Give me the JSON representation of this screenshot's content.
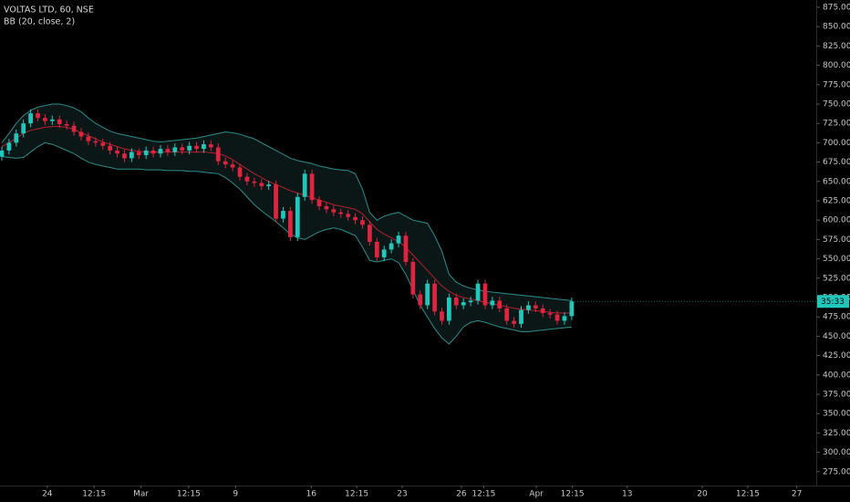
{
  "chart_data": {
    "type": "candlestick",
    "title": "VOLTAS LTD, 60, NSE",
    "indicator_label": "BB (20, close, 2)",
    "last_price_label": "35:33",
    "up_color": "#22c7bb",
    "down_color": "#e0233f",
    "band_color": "#2b8d8a",
    "basis_color": "#b3232f",
    "band_fill": "#0b1716",
    "xlim": [
      -0.25,
      112.9
    ],
    "xticks": [
      {
        "value": 6.3,
        "label": "24"
      },
      {
        "value": 12.8,
        "label": "12:15"
      },
      {
        "value": 19.3,
        "label": "Mar"
      },
      {
        "value": 25.9,
        "label": "12:15"
      },
      {
        "value": 32.4,
        "label": "9"
      },
      {
        "value": 42.9,
        "label": "16"
      },
      {
        "value": 49.2,
        "label": "12:15"
      },
      {
        "value": 55.5,
        "label": "23"
      },
      {
        "value": 63.7,
        "label": "26"
      },
      {
        "value": 66.8,
        "label": "12:15"
      },
      {
        "value": 74.1,
        "label": "Apr"
      },
      {
        "value": 79.1,
        "label": "12:15"
      },
      {
        "value": 86.7,
        "label": "13"
      },
      {
        "value": 97.1,
        "label": "20"
      },
      {
        "value": 103.4,
        "label": "12:15"
      },
      {
        "value": 110.2,
        "label": "27"
      }
    ],
    "ylim": [
      257.1,
      884.4
    ],
    "yticks": [
      {
        "value": 275,
        "label": "275.00"
      },
      {
        "value": 300,
        "label": "300.00"
      },
      {
        "value": 325,
        "label": "325.00"
      },
      {
        "value": 350,
        "label": "350.00"
      },
      {
        "value": 375,
        "label": "375.00"
      },
      {
        "value": 400,
        "label": "400.00"
      },
      {
        "value": 425,
        "label": "425.00"
      },
      {
        "value": 450,
        "label": "450.00"
      },
      {
        "value": 475,
        "label": "475.00"
      },
      {
        "value": 500,
        "label": "500.00"
      },
      {
        "value": 525,
        "label": "525.00"
      },
      {
        "value": 550,
        "label": "550.00"
      },
      {
        "value": 575,
        "label": "575.00"
      },
      {
        "value": 600,
        "label": "600.00"
      },
      {
        "value": 625,
        "label": "625.00"
      },
      {
        "value": 650,
        "label": "650.00"
      },
      {
        "value": 675,
        "label": "675.00"
      },
      {
        "value": 700,
        "label": "700.00"
      },
      {
        "value": 725,
        "label": "725.00"
      },
      {
        "value": 750,
        "label": "750.00"
      },
      {
        "value": 775,
        "label": "775.00"
      },
      {
        "value": 800,
        "label": "800.00"
      },
      {
        "value": 825,
        "label": "825.00"
      },
      {
        "value": 850,
        "label": "850.00"
      },
      {
        "value": 875,
        "label": "875.00"
      }
    ],
    "open": [
      682,
      690,
      700,
      712,
      725,
      738,
      732,
      728,
      730,
      724,
      722,
      714,
      708,
      702,
      700,
      696,
      690,
      686,
      680,
      688,
      684,
      690,
      686,
      692,
      688,
      694,
      690,
      696,
      692,
      698,
      694,
      676,
      672,
      668,
      656,
      650,
      648,
      644,
      646,
      602,
      612,
      578,
      630,
      660,
      626,
      618,
      614,
      610,
      608,
      604,
      600,
      594,
      572,
      552,
      562,
      570,
      580,
      546,
      504,
      490,
      518,
      482,
      470,
      500,
      490,
      494,
      496,
      518,
      490,
      496,
      486,
      470,
      466,
      484,
      490,
      486,
      480,
      478,
      470,
      476
    ],
    "high": [
      695,
      705,
      717,
      730,
      743,
      743,
      737,
      735,
      735,
      729,
      727,
      719,
      713,
      707,
      705,
      701,
      695,
      691,
      693,
      693,
      695,
      695,
      697,
      697,
      699,
      699,
      701,
      701,
      703,
      703,
      699,
      681,
      677,
      673,
      661,
      655,
      653,
      651,
      651,
      617,
      617,
      635,
      665,
      665,
      631,
      623,
      619,
      615,
      613,
      609,
      605,
      599,
      577,
      567,
      575,
      585,
      585,
      551,
      509,
      523,
      523,
      487,
      505,
      505,
      499,
      501,
      523,
      523,
      501,
      501,
      491,
      475,
      489,
      495,
      495,
      491,
      485,
      483,
      481,
      500
    ],
    "low": [
      677,
      685,
      695,
      707,
      720,
      727,
      723,
      723,
      719,
      717,
      709,
      703,
      697,
      695,
      691,
      685,
      681,
      675,
      675,
      679,
      679,
      681,
      681,
      683,
      683,
      685,
      685,
      687,
      687,
      689,
      671,
      667,
      663,
      651,
      645,
      643,
      639,
      639,
      597,
      597,
      573,
      573,
      625,
      621,
      613,
      609,
      605,
      603,
      599,
      595,
      589,
      567,
      547,
      547,
      557,
      565,
      541,
      499,
      485,
      485,
      477,
      465,
      465,
      485,
      485,
      489,
      491,
      485,
      485,
      481,
      465,
      461,
      461,
      479,
      481,
      475,
      473,
      465,
      465,
      471
    ],
    "close": [
      690,
      700,
      712,
      725,
      738,
      732,
      728,
      730,
      724,
      722,
      714,
      708,
      702,
      700,
      696,
      690,
      686,
      680,
      688,
      684,
      690,
      686,
      692,
      688,
      694,
      690,
      696,
      692,
      698,
      694,
      676,
      672,
      668,
      656,
      650,
      648,
      644,
      646,
      602,
      612,
      578,
      630,
      660,
      626,
      618,
      614,
      610,
      608,
      604,
      600,
      594,
      572,
      552,
      562,
      570,
      580,
      546,
      504,
      490,
      518,
      482,
      470,
      500,
      490,
      494,
      496,
      518,
      490,
      496,
      486,
      470,
      466,
      484,
      490,
      486,
      480,
      478,
      470,
      476,
      495
    ],
    "upper": [
      700,
      712,
      725,
      735,
      742,
      746,
      748,
      750,
      750,
      748,
      745,
      740,
      732,
      725,
      720,
      715,
      712,
      710,
      708,
      706,
      704,
      702,
      701,
      702,
      703,
      704,
      705,
      706,
      708,
      710,
      712,
      714,
      713,
      711,
      708,
      705,
      700,
      695,
      690,
      685,
      680,
      677,
      675,
      673,
      670,
      668,
      666,
      665,
      664,
      660,
      640,
      610,
      600,
      605,
      608,
      610,
      605,
      600,
      598,
      596,
      580,
      560,
      530,
      520,
      515,
      512,
      510,
      508,
      507,
      506,
      505,
      504,
      503,
      502,
      501,
      500,
      499,
      498,
      497,
      496
    ],
    "basis": [
      695,
      700,
      706,
      712,
      716,
      718,
      720,
      721,
      721,
      720,
      717,
      713,
      709,
      705,
      701,
      698,
      695,
      692,
      690,
      689,
      688,
      688,
      688,
      688,
      688,
      688,
      688,
      688,
      688,
      687,
      686,
      683,
      678,
      672,
      666,
      660,
      655,
      650,
      646,
      642,
      638,
      635,
      632,
      629,
      626,
      623,
      620,
      618,
      616,
      614,
      608,
      598,
      588,
      582,
      577,
      572,
      565,
      555,
      545,
      535,
      525,
      515,
      508,
      503,
      500,
      498,
      496,
      494,
      492,
      490,
      488,
      486,
      485,
      484,
      483,
      482,
      481,
      480,
      480,
      480
    ],
    "lower": [
      682,
      681,
      680,
      681,
      688,
      695,
      700,
      698,
      694,
      690,
      686,
      680,
      675,
      672,
      670,
      668,
      666,
      666,
      666,
      666,
      665,
      665,
      665,
      664,
      664,
      664,
      663,
      663,
      662,
      661,
      660,
      655,
      648,
      640,
      630,
      620,
      612,
      605,
      598,
      590,
      582,
      577,
      575,
      580,
      585,
      588,
      590,
      588,
      584,
      580,
      565,
      548,
      546,
      548,
      550,
      545,
      530,
      510,
      490,
      475,
      460,
      448,
      440,
      450,
      462,
      468,
      470,
      468,
      465,
      462,
      460,
      458,
      456,
      456,
      457,
      458,
      459,
      460,
      461,
      462
    ]
  }
}
